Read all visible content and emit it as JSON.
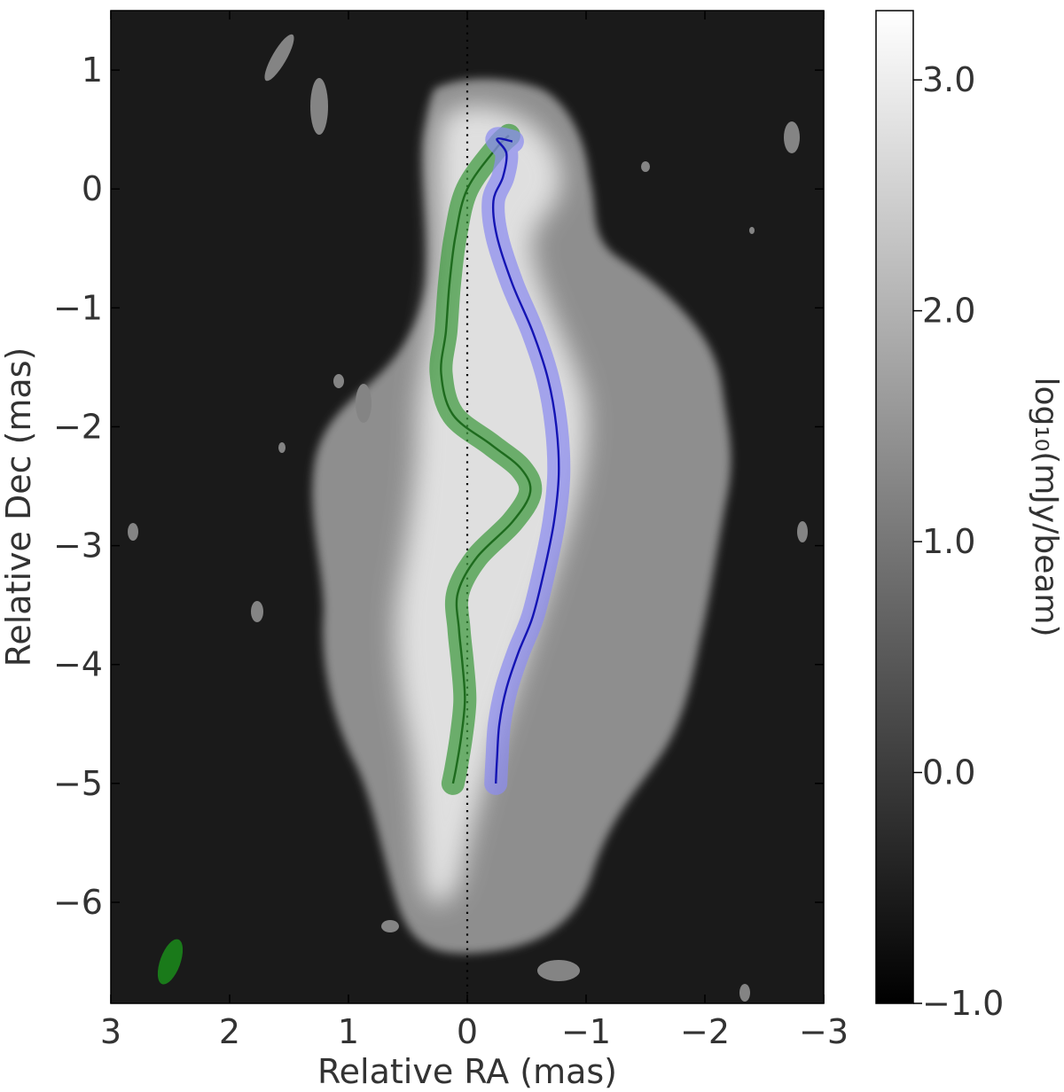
{
  "chart_data": {
    "type": "heatmap",
    "title": "",
    "xlabel": "Relative RA (mas)",
    "ylabel": "Relative Dec (mas)",
    "xlim": [
      3,
      -3
    ],
    "ylim": [
      -6.85,
      1.5
    ],
    "xticks": [
      3,
      2,
      1,
      0,
      -1,
      -2,
      -3
    ],
    "xtick_labels": [
      "3",
      "2",
      "1",
      "0",
      "−1",
      "−2",
      "−3"
    ],
    "yticks": [
      1,
      0,
      -1,
      -2,
      -3,
      -4,
      -5,
      -6
    ],
    "ytick_labels": [
      "1",
      "0",
      "−1",
      "−2",
      "−3",
      "−4",
      "−5",
      "−6"
    ],
    "grid": false,
    "background_color": "#1a1a1a",
    "colorbar": {
      "label": "log₁₀(mJy/beam)",
      "range": [
        -1.0,
        3.3
      ],
      "ticks": [
        -1.0,
        0.0,
        1.0,
        2.0,
        3.0
      ],
      "tick_labels": [
        "−1.0",
        "0.0",
        "1.0",
        "2.0",
        "3.0"
      ],
      "colormap": "gray"
    },
    "reference_line": {
      "x": 0,
      "style": "dotted",
      "color": "#000000"
    },
    "beam": {
      "x": 2.5,
      "y": -6.5,
      "major": 0.4,
      "minor": 0.17,
      "angle_deg": 20,
      "color": "#1a7a1a"
    },
    "series": [
      {
        "color": "#1e6b1e",
        "band_color": "#3f9a3f",
        "x": [
          -0.35,
          -0.25,
          0.0,
          0.1,
          0.15,
          0.18,
          0.22,
          0.12,
          -0.2,
          -0.45,
          -0.53,
          -0.38,
          -0.08,
          0.08,
          0.07,
          0.04,
          0.02,
          0.05,
          0.09,
          0.12
        ],
        "y": [
          0.45,
          0.35,
          0.0,
          -0.4,
          -0.8,
          -1.2,
          -1.55,
          -1.9,
          -2.15,
          -2.35,
          -2.55,
          -2.8,
          -3.1,
          -3.4,
          -3.7,
          -4.0,
          -4.3,
          -4.6,
          -4.85,
          -5.0
        ]
      },
      {
        "color": "#1414b4",
        "band_color": "#8c8cf0",
        "x": [
          -0.38,
          -0.25,
          -0.33,
          -0.3,
          -0.22,
          -0.25,
          -0.38,
          -0.55,
          -0.68,
          -0.75,
          -0.77,
          -0.73,
          -0.65,
          -0.55,
          -0.43,
          -0.33,
          -0.27,
          -0.25,
          -0.24
        ],
        "y": [
          0.4,
          0.42,
          0.3,
          0.1,
          -0.1,
          -0.4,
          -0.8,
          -1.2,
          -1.6,
          -2.0,
          -2.4,
          -2.8,
          -3.2,
          -3.6,
          -3.9,
          -4.2,
          -4.5,
          -4.8,
          -5.0
        ]
      }
    ]
  }
}
